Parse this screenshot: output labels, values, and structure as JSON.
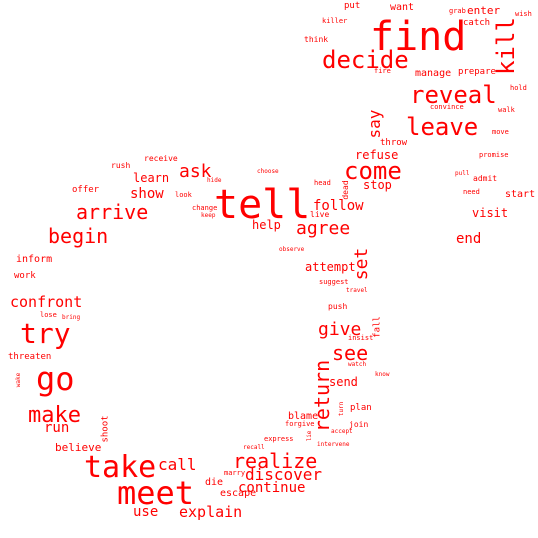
{
  "word_color": "#ff0000",
  "background": "#ffffff",
  "words": [
    "find",
    "kill",
    "decide",
    "reveal",
    "leave",
    "say",
    "come",
    "refuse",
    "stop",
    "tell",
    "arrive",
    "begin",
    "ask",
    "learn",
    "show",
    "agree",
    "follow",
    "help",
    "go",
    "try",
    "make",
    "run",
    "confront",
    "take",
    "meet",
    "call",
    "use",
    "explain",
    "realize",
    "discover",
    "continue",
    "return",
    "give",
    "see",
    "set",
    "send",
    "attempt",
    "end",
    "visit",
    "start",
    "enter",
    "want",
    "put",
    "catch",
    "grab",
    "wish",
    "killer",
    "think",
    "fire",
    "manage",
    "prepare",
    "hold",
    "convince",
    "walk",
    "throw",
    "move",
    "promise",
    "pull",
    "admit",
    "need",
    "head",
    "dead",
    "live",
    "choose",
    "hide",
    "receive",
    "rush",
    "look",
    "offer",
    "change",
    "keep",
    "observe",
    "inform",
    "work",
    "lose",
    "bring",
    "threaten",
    "wake",
    "believe",
    "shoot",
    "blame",
    "forgive",
    "express",
    "recall",
    "marry",
    "die",
    "escape",
    "plan",
    "join",
    "accept",
    "intervene",
    "turn",
    "watch",
    "know",
    "insist",
    "fall",
    "push",
    "travel",
    "suggest",
    "lie"
  ]
}
